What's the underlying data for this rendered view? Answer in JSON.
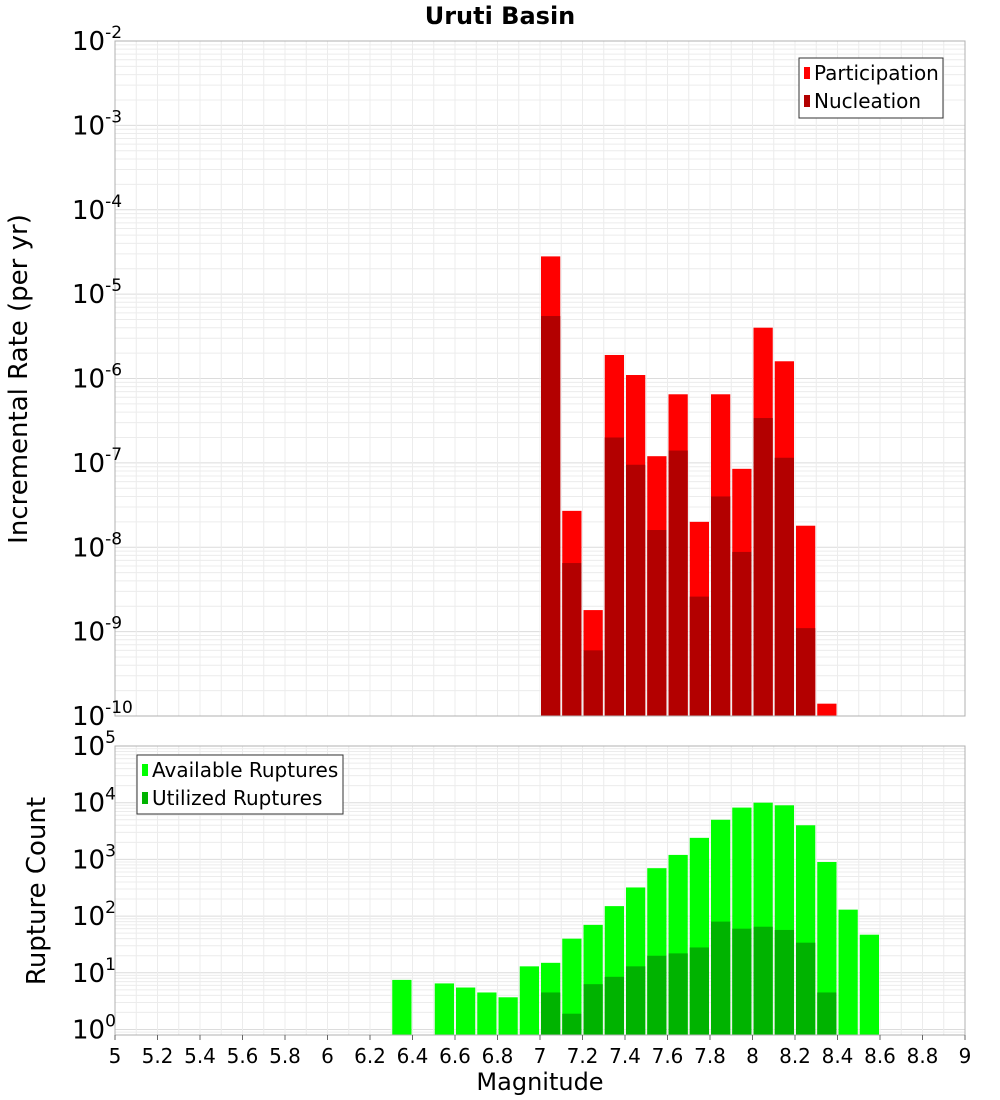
{
  "chart_data": [
    {
      "type": "bar",
      "title": "Uruti Basin",
      "ylabel": "Incremental Rate (per yr)",
      "yscale": "log",
      "ylim": [
        1e-10,
        0.01
      ],
      "ytick_base": "10",
      "ytick_exponents": [
        "-10",
        "-9",
        "-8",
        "-7",
        "-6",
        "-5",
        "-4",
        "-3",
        "-2"
      ],
      "xlim": [
        5,
        9
      ],
      "bin_width": 0.1,
      "grid": true,
      "legend_position": "top-right",
      "series": [
        {
          "name": "Participation",
          "color": "#ff0000",
          "x": [
            7.05,
            7.15,
            7.25,
            7.35,
            7.45,
            7.55,
            7.65,
            7.75,
            7.85,
            7.95,
            8.05,
            8.15,
            8.25,
            8.35
          ],
          "values": [
            2.8e-05,
            2.7e-08,
            1.8e-09,
            1.9e-06,
            1.1e-06,
            1.2e-07,
            6.5e-07,
            2e-08,
            6.5e-07,
            8.5e-08,
            4e-06,
            1.6e-06,
            1.8e-08,
            1.4e-10
          ]
        },
        {
          "name": "Nucleation",
          "color": "#b30000",
          "x": [
            7.05,
            7.15,
            7.25,
            7.35,
            7.45,
            7.55,
            7.65,
            7.75,
            7.85,
            7.95,
            8.05,
            8.15,
            8.25
          ],
          "values": [
            5.5e-06,
            6.5e-09,
            6e-10,
            2e-07,
            9.5e-08,
            1.6e-08,
            1.4e-07,
            2.6e-09,
            4e-08,
            8.8e-09,
            3.4e-07,
            1.15e-07,
            1.1e-09
          ]
        }
      ]
    },
    {
      "type": "bar",
      "xlabel": "Magnitude",
      "ylabel": "Rupture Count",
      "yscale": "log",
      "ylim": [
        0.8,
        100000.0
      ],
      "ytick_base": "10",
      "ytick_exponents": [
        "0",
        "1",
        "2",
        "3",
        "4",
        "5"
      ],
      "xlim": [
        5,
        9
      ],
      "x_ticks": [
        "5",
        "5.2",
        "5.4",
        "5.6",
        "5.8",
        "6",
        "6.2",
        "6.4",
        "6.6",
        "6.8",
        "7",
        "7.2",
        "7.4",
        "7.6",
        "7.8",
        "8",
        "8.2",
        "8.4",
        "8.6",
        "8.8",
        "9"
      ],
      "bin_width": 0.1,
      "grid": true,
      "legend_position": "top-left",
      "series": [
        {
          "name": "Available Ruptures",
          "color": "#00ff00",
          "x": [
            6.35,
            6.55,
            6.65,
            6.75,
            6.85,
            6.95,
            7.05,
            7.15,
            7.25,
            7.35,
            7.45,
            7.55,
            7.65,
            7.75,
            7.85,
            7.95,
            8.05,
            8.15,
            8.25,
            8.35,
            8.45,
            8.55
          ],
          "values": [
            7.5,
            6.5,
            5.5,
            4.5,
            3.7,
            13,
            15,
            40,
            70,
            150,
            320,
            700,
            1200,
            2400,
            5000,
            8200,
            10000,
            9000,
            4000,
            900,
            130,
            47
          ]
        },
        {
          "name": "Utilized Ruptures",
          "color": "#00b300",
          "x": [
            7.05,
            7.15,
            7.25,
            7.35,
            7.45,
            7.55,
            7.65,
            7.75,
            7.85,
            7.95,
            8.05,
            8.15,
            8.25,
            8.35
          ],
          "values": [
            4.5,
            1.9,
            6.3,
            8.5,
            13,
            20,
            22,
            28,
            80,
            60,
            65,
            57,
            34,
            4.5
          ]
        }
      ]
    }
  ]
}
